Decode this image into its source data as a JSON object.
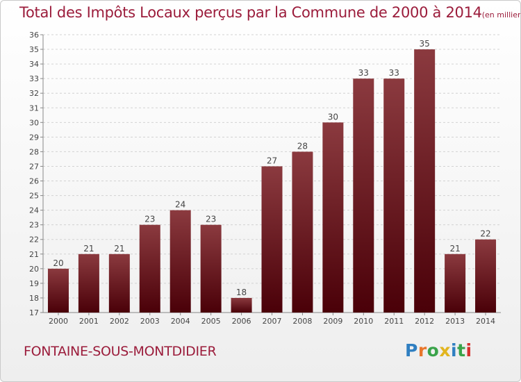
{
  "title": "Total des Impôts Locaux perçus par la Commune de 2000 à 2014",
  "title_unit": "(en milliers d'€)",
  "commune": "FONTAINE-SOUS-MONTDIDIER",
  "logo": {
    "text": "Proxiti",
    "letters": [
      "P",
      "r",
      "o",
      "x",
      "i",
      "t",
      "i"
    ]
  },
  "colors": {
    "title": "#9b1c3b",
    "bar_top": "#8b3a3f",
    "bar_bottom": "#4a0008"
  },
  "chart_data": {
    "type": "bar",
    "title": "Total des Impôts Locaux perçus par la Commune de 2000 à 2014",
    "xlabel": "",
    "ylabel": "",
    "categories": [
      "2000",
      "2001",
      "2002",
      "2003",
      "2004",
      "2005",
      "2006",
      "2007",
      "2008",
      "2009",
      "2010",
      "2011",
      "2012",
      "2013",
      "2014"
    ],
    "values": [
      20,
      21,
      21,
      23,
      24,
      23,
      18,
      27,
      28,
      30,
      33,
      33,
      35,
      21,
      22
    ],
    "ylim": [
      17,
      36
    ],
    "yticks": [
      17,
      18,
      19,
      20,
      21,
      22,
      23,
      24,
      25,
      26,
      27,
      28,
      29,
      30,
      31,
      32,
      33,
      34,
      35,
      36
    ],
    "grid": true
  }
}
